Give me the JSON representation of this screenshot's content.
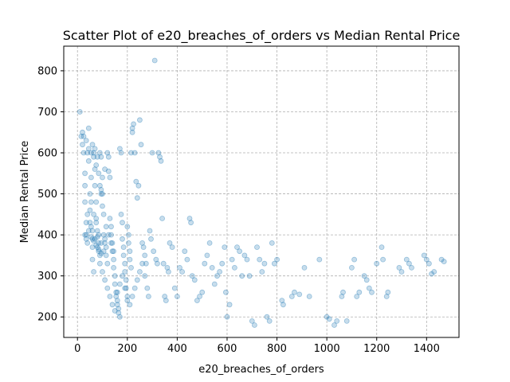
{
  "chart_data": {
    "type": "scatter",
    "title": "Scatter Plot of e20_breaches_of_orders vs Median Rental Price",
    "xlabel": "e20_breaches_of_orders",
    "ylabel": "Median Rental Price",
    "xlim": [
      -55,
      1530
    ],
    "ylim": [
      150,
      860
    ],
    "xticks": [
      0,
      200,
      400,
      600,
      800,
      1000,
      1200,
      1400
    ],
    "yticks": [
      200,
      300,
      400,
      500,
      600,
      700,
      800
    ],
    "grid": true,
    "grid_style": "dashed",
    "legend": "none",
    "marker_color": "#1f77b4",
    "marker_alpha": 0.25,
    "series": [
      {
        "points": [
          [
            10,
            700
          ],
          [
            15,
            640
          ],
          [
            20,
            650
          ],
          [
            20,
            620
          ],
          [
            25,
            600
          ],
          [
            30,
            550
          ],
          [
            30,
            520
          ],
          [
            30,
            480
          ],
          [
            35,
            430
          ],
          [
            35,
            400
          ],
          [
            40,
            380
          ],
          [
            40,
            600
          ],
          [
            45,
            660
          ],
          [
            45,
            580
          ],
          [
            50,
            500
          ],
          [
            50,
            460
          ],
          [
            55,
            540
          ],
          [
            55,
            420
          ],
          [
            60,
            390
          ],
          [
            60,
            370
          ],
          [
            60,
            340
          ],
          [
            65,
            310
          ],
          [
            65,
            600
          ],
          [
            70,
            560
          ],
          [
            70,
            520
          ],
          [
            75,
            480
          ],
          [
            75,
            440
          ],
          [
            80,
            410
          ],
          [
            80,
            395
          ],
          [
            85,
            380
          ],
          [
            85,
            360
          ],
          [
            90,
            350
          ],
          [
            90,
            600
          ],
          [
            95,
            590
          ],
          [
            95,
            510
          ],
          [
            100,
            500
          ],
          [
            100,
            470
          ],
          [
            105,
            450
          ],
          [
            105,
            400
          ],
          [
            110,
            390
          ],
          [
            110,
            380
          ],
          [
            115,
            370
          ],
          [
            115,
            350
          ],
          [
            120,
            330
          ],
          [
            120,
            600
          ],
          [
            125,
            590
          ],
          [
            125,
            555
          ],
          [
            130,
            540
          ],
          [
            130,
            440
          ],
          [
            135,
            420
          ],
          [
            135,
            400
          ],
          [
            140,
            380
          ],
          [
            140,
            360
          ],
          [
            145,
            340
          ],
          [
            145,
            320
          ],
          [
            150,
            300
          ],
          [
            150,
            280
          ],
          [
            155,
            260
          ],
          [
            155,
            250
          ],
          [
            160,
            240
          ],
          [
            160,
            230
          ],
          [
            165,
            220
          ],
          [
            165,
            210
          ],
          [
            170,
            200
          ],
          [
            170,
            610
          ],
          [
            175,
            600
          ],
          [
            175,
            450
          ],
          [
            180,
            430
          ],
          [
            180,
            390
          ],
          [
            185,
            370
          ],
          [
            185,
            350
          ],
          [
            190,
            330
          ],
          [
            190,
            310
          ],
          [
            195,
            290
          ],
          [
            195,
            270
          ],
          [
            200,
            250
          ],
          [
            200,
            420
          ],
          [
            205,
            400
          ],
          [
            205,
            380
          ],
          [
            210,
            360
          ],
          [
            210,
            340
          ],
          [
            215,
            320
          ],
          [
            215,
            600
          ],
          [
            220,
            650
          ],
          [
            220,
            660
          ],
          [
            225,
            670
          ],
          [
            230,
            600
          ],
          [
            235,
            530
          ],
          [
            240,
            490
          ],
          [
            245,
            520
          ],
          [
            250,
            680
          ],
          [
            255,
            620
          ],
          [
            260,
            380
          ],
          [
            265,
            370
          ],
          [
            270,
            350
          ],
          [
            275,
            330
          ],
          [
            280,
            270
          ],
          [
            285,
            250
          ],
          [
            290,
            410
          ],
          [
            295,
            390
          ],
          [
            300,
            600
          ],
          [
            305,
            360
          ],
          [
            310,
            825
          ],
          [
            315,
            340
          ],
          [
            320,
            330
          ],
          [
            325,
            600
          ],
          [
            330,
            590
          ],
          [
            335,
            580
          ],
          [
            340,
            440
          ],
          [
            345,
            330
          ],
          [
            350,
            250
          ],
          [
            355,
            240
          ],
          [
            360,
            320
          ],
          [
            365,
            310
          ],
          [
            370,
            380
          ],
          [
            380,
            370
          ],
          [
            390,
            270
          ],
          [
            400,
            250
          ],
          [
            410,
            320
          ],
          [
            420,
            310
          ],
          [
            430,
            360
          ],
          [
            440,
            340
          ],
          [
            450,
            440
          ],
          [
            455,
            430
          ],
          [
            460,
            300
          ],
          [
            470,
            290
          ],
          [
            480,
            240
          ],
          [
            490,
            250
          ],
          [
            500,
            260
          ],
          [
            510,
            330
          ],
          [
            520,
            350
          ],
          [
            530,
            380
          ],
          [
            540,
            320
          ],
          [
            550,
            280
          ],
          [
            560,
            300
          ],
          [
            570,
            310
          ],
          [
            580,
            330
          ],
          [
            590,
            370
          ],
          [
            595,
            260
          ],
          [
            600,
            200
          ],
          [
            610,
            230
          ],
          [
            620,
            340
          ],
          [
            630,
            320
          ],
          [
            640,
            370
          ],
          [
            650,
            360
          ],
          [
            660,
            300
          ],
          [
            670,
            350
          ],
          [
            680,
            340
          ],
          [
            690,
            300
          ],
          [
            700,
            190
          ],
          [
            710,
            180
          ],
          [
            720,
            370
          ],
          [
            730,
            340
          ],
          [
            740,
            310
          ],
          [
            750,
            330
          ],
          [
            760,
            200
          ],
          [
            770,
            190
          ],
          [
            780,
            380
          ],
          [
            790,
            330
          ],
          [
            800,
            340
          ],
          [
            820,
            240
          ],
          [
            825,
            230
          ],
          [
            860,
            250
          ],
          [
            870,
            260
          ],
          [
            890,
            255
          ],
          [
            910,
            320
          ],
          [
            930,
            250
          ],
          [
            970,
            340
          ],
          [
            1000,
            200
          ],
          [
            1010,
            195
          ],
          [
            1030,
            180
          ],
          [
            1040,
            190
          ],
          [
            1060,
            250
          ],
          [
            1065,
            260
          ],
          [
            1080,
            190
          ],
          [
            1100,
            320
          ],
          [
            1110,
            340
          ],
          [
            1120,
            250
          ],
          [
            1130,
            260
          ],
          [
            1150,
            300
          ],
          [
            1160,
            290
          ],
          [
            1170,
            270
          ],
          [
            1180,
            260
          ],
          [
            1200,
            330
          ],
          [
            1220,
            370
          ],
          [
            1225,
            340
          ],
          [
            1240,
            250
          ],
          [
            1245,
            260
          ],
          [
            1290,
            320
          ],
          [
            1300,
            310
          ],
          [
            1320,
            340
          ],
          [
            1330,
            330
          ],
          [
            1340,
            320
          ],
          [
            1390,
            350
          ],
          [
            1400,
            340
          ],
          [
            1410,
            330
          ],
          [
            1420,
            305
          ],
          [
            1430,
            310
          ],
          [
            1460,
            340
          ],
          [
            1470,
            335
          ],
          [
            60,
            620
          ],
          [
            70,
            610
          ],
          [
            80,
            590
          ],
          [
            90,
            520
          ],
          [
            100,
            540
          ],
          [
            110,
            560
          ],
          [
            55,
            480
          ],
          [
            65,
            450
          ],
          [
            75,
            430
          ],
          [
            85,
            400
          ],
          [
            95,
            380
          ],
          [
            105,
            360
          ],
          [
            115,
            420
          ],
          [
            125,
            400
          ],
          [
            135,
            380
          ],
          [
            145,
            360
          ],
          [
            40,
            450
          ],
          [
            50,
            430
          ],
          [
            60,
            410
          ],
          [
            70,
            390
          ],
          [
            80,
            370
          ],
          [
            90,
            330
          ],
          [
            100,
            310
          ],
          [
            110,
            290
          ],
          [
            120,
            270
          ],
          [
            130,
            250
          ],
          [
            140,
            230
          ],
          [
            150,
            215
          ],
          [
            160,
            260
          ],
          [
            170,
            280
          ],
          [
            180,
            300
          ],
          [
            190,
            270
          ],
          [
            200,
            240
          ],
          [
            210,
            230
          ],
          [
            220,
            250
          ],
          [
            230,
            270
          ],
          [
            240,
            290
          ],
          [
            250,
            310
          ],
          [
            260,
            330
          ],
          [
            270,
            300
          ],
          [
            30,
            400
          ],
          [
            35,
            390
          ],
          [
            45,
            410
          ],
          [
            55,
            395
          ],
          [
            65,
            385
          ],
          [
            75,
            375
          ],
          [
            85,
            365
          ],
          [
            95,
            355
          ],
          [
            25,
            640
          ],
          [
            35,
            630
          ],
          [
            45,
            610
          ],
          [
            55,
            600
          ],
          [
            65,
            590
          ],
          [
            75,
            570
          ],
          [
            85,
            550
          ],
          [
            95,
            500
          ]
        ]
      }
    ]
  }
}
